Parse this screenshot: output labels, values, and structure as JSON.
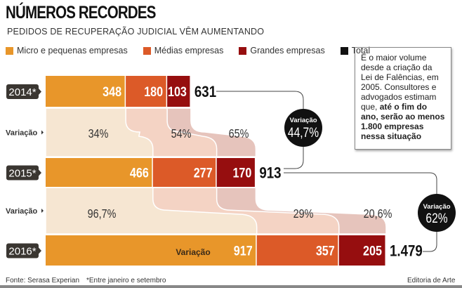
{
  "header": {
    "title": "NÚMEROS RECORDES",
    "subtitle": "PEDIDOS DE RECUPERAÇÃO JUDICIAL VÊM AUMENTANDO"
  },
  "legend": [
    {
      "label": "Micro e pequenas empresas",
      "color": "#e8962a"
    },
    {
      "label": "Médias empresas",
      "color": "#dc5a28"
    },
    {
      "label": "Grandes empresas",
      "color": "#960e0f"
    },
    {
      "label": "Total",
      "color": "#111111"
    }
  ],
  "note": {
    "text_plain": "É o maior volume desde a criação da Lei de Falências, em 2005. Consultores e advogados estimam que,",
    "text_bold": "até o fim do ano, serão ao menos 1.800 empresas nessa situação"
  },
  "chart_data": {
    "type": "bar",
    "orientation": "horizontal-stacked",
    "title": "NÚMEROS RECORDES",
    "subtitle": "PEDIDOS DE RECUPERAÇÃO JUDICIAL VÊM AUMENTANDO",
    "categories": [
      "2014*",
      "2015*",
      "2016*"
    ],
    "series": [
      {
        "name": "Micro e pequenas empresas",
        "values": [
          348,
          466,
          917
        ],
        "color": "#e8962a"
      },
      {
        "name": "Médias empresas",
        "values": [
          180,
          277,
          357
        ],
        "color": "#dc5a28"
      },
      {
        "name": "Grandes empresas",
        "values": [
          103,
          170,
          205
        ],
        "color": "#960e0f"
      }
    ],
    "totals": {
      "label": "Total",
      "values": [
        "631",
        "913",
        "1.479"
      ]
    },
    "variation_label": "Variação",
    "variations": [
      {
        "from": "2014*",
        "to": "2015*",
        "values": [
          "34%",
          "54%",
          "65%"
        ],
        "total": "44,7%"
      },
      {
        "from": "2015*",
        "to": "2016*",
        "values": [
          "96,7%",
          "29%",
          "20,6%"
        ],
        "total": "62%"
      }
    ],
    "inline_label_2016": "Variação"
  },
  "footer": {
    "source": "Fonte: Serasa Experian",
    "footnote": "*Entre janeiro e setembro",
    "credit": "Editoria de Arte"
  }
}
